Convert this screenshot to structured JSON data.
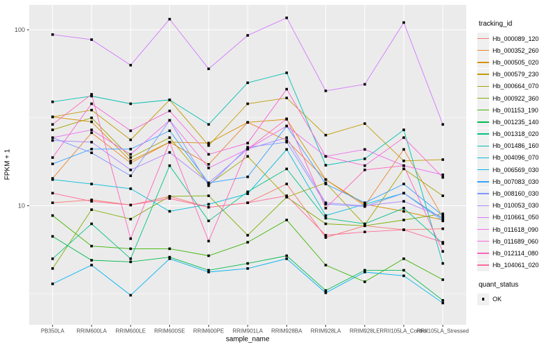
{
  "figure": {
    "background": "#ffffff",
    "panel_background": "#ebebeb",
    "grid_color": "#ffffff",
    "tick_color": "#333333",
    "tick_label_color": "#4d4d4d",
    "point_color": "#000000"
  },
  "axes": {
    "x_title": "sample_name",
    "y_title": "FPKM + 1",
    "y_tick_labels": [
      "100",
      "10"
    ]
  },
  "legend": {
    "tracking_title": "tracking_id",
    "quant_title": "quant_status",
    "quant_items": [
      {
        "label": "OK",
        "marker": "black-square"
      }
    ]
  },
  "chart_data": {
    "type": "line",
    "title": "",
    "xlabel": "sample_name",
    "ylabel": "FPKM + 1",
    "y_scale": "log10",
    "y_ticks": [
      100,
      10
    ],
    "y_minor_ticks": [
      31.623,
      3.162
    ],
    "ylim": [
      2.1,
      138
    ],
    "grid": true,
    "legend_position": "right",
    "point_marker": "black-square",
    "x_categories": [
      "PB350LA",
      "RRIM600LA",
      "RRIM600LE",
      "RRIM600SE",
      "RRIM600PE",
      "RRIM901LA",
      "RRIM928BA",
      "RRIM928LA",
      "RRIM928LE",
      "RRII105LA_Control",
      "RRII105LA_Stressed"
    ],
    "series": [
      {
        "name": "Hb_000089_120",
        "color": "#F8766D",
        "values": [
          10.4,
          10.8,
          10.1,
          11.3,
          9.8,
          10.4,
          13.3,
          6.6,
          7.7,
          7.3,
          7.4
        ]
      },
      {
        "name": "Hb_000352_260",
        "color": "#EA8331",
        "values": [
          14.3,
          26.0,
          17.5,
          23.0,
          17.2,
          29.8,
          23.5,
          14.1,
          10.0,
          20.9,
          8.6
        ]
      },
      {
        "name": "Hb_000505_020",
        "color": "#D89000",
        "values": [
          32.0,
          30.0,
          18.0,
          23.0,
          22.7,
          29.8,
          31.0,
          14.1,
          10.2,
          9.3,
          8.3
        ]
      },
      {
        "name": "Hb_000579_230",
        "color": "#C09B00",
        "values": [
          32.0,
          35.0,
          23.7,
          40.0,
          22.0,
          38.0,
          41.0,
          25.2,
          29.3,
          18.0,
          18.3
        ]
      },
      {
        "name": "Hb_000664_070",
        "color": "#A3A500",
        "values": [
          27.0,
          31.6,
          18.8,
          24.4,
          13.2,
          19.1,
          11.2,
          13.5,
          7.8,
          16.2,
          11.4
        ]
      },
      {
        "name": "Hb_000922_360",
        "color": "#7CAE00",
        "values": [
          4.4,
          9.5,
          8.4,
          11.3,
          11.4,
          6.8,
          11.2,
          7.9,
          7.7,
          8.3,
          9.0
        ]
      },
      {
        "name": "Hb_001153_190",
        "color": "#39B600",
        "values": [
          8.8,
          5.9,
          5.7,
          5.7,
          5.2,
          6.2,
          8.3,
          4.6,
          3.7,
          5.0,
          3.8
        ]
      },
      {
        "name": "Hb_001235_140",
        "color": "#00BB4E",
        "values": [
          6.7,
          4.9,
          4.8,
          5.1,
          4.3,
          4.7,
          5.2,
          3.3,
          4.3,
          4.3,
          2.9
        ]
      },
      {
        "name": "Hb_001318_020",
        "color": "#00C087",
        "values": [
          5.0,
          7.9,
          5.0,
          16.9,
          8.2,
          12.0,
          16.2,
          8.5,
          7.9,
          9.7,
          6.1
        ]
      },
      {
        "name": "Hb_001486_160",
        "color": "#00C0B2",
        "values": [
          39.0,
          42.0,
          38.0,
          40.0,
          29.0,
          50.0,
          57.0,
          17.0,
          18.5,
          27.0,
          4.7
        ]
      },
      {
        "name": "Hb_004096_070",
        "color": "#00BCD8",
        "values": [
          14.1,
          13.3,
          12.5,
          9.3,
          10.2,
          11.7,
          20.9,
          8.8,
          10.2,
          11.8,
          8.4
        ]
      },
      {
        "name": "Hb_006569_030",
        "color": "#00B3F2",
        "values": [
          3.6,
          4.6,
          3.1,
          5.0,
          4.2,
          4.4,
          5.0,
          3.2,
          4.2,
          4.0,
          2.8
        ]
      },
      {
        "name": "Hb_007083_030",
        "color": "#35A2FF",
        "values": [
          17.3,
          21.0,
          21.0,
          26.7,
          13.5,
          14.6,
          28.4,
          13.3,
          10.4,
          13.3,
          8.8
        ]
      },
      {
        "name": "Hb_008160_030",
        "color": "#7E96FF",
        "values": [
          24.4,
          20.0,
          14.8,
          30.6,
          13.0,
          21.5,
          23.0,
          10.2,
          9.9,
          11.8,
          8.2
        ]
      },
      {
        "name": "Hb_010053_030",
        "color": "#AE87FF",
        "values": [
          23.5,
          23.0,
          16.0,
          20.1,
          13.5,
          21.0,
          24.4,
          10.4,
          10.0,
          10.6,
          8.6
        ]
      },
      {
        "name": "Hb_010661_050",
        "color": "#D476FF",
        "values": [
          94.0,
          88.0,
          63.0,
          115.0,
          60.0,
          93.0,
          117.0,
          45.0,
          49.0,
          110.0,
          29.0
        ]
      },
      {
        "name": "Hb_011618_090",
        "color": "#EE6BF0",
        "values": [
          24.4,
          27.0,
          19.6,
          30.6,
          16.4,
          21.0,
          28.4,
          19.1,
          20.9,
          16.9,
          15.0
        ]
      },
      {
        "name": "Hb_011689_060",
        "color": "#FB61D7",
        "values": [
          18.8,
          38.0,
          26.7,
          34.6,
          19.6,
          22.7,
          46.0,
          19.1,
          16.9,
          24.4,
          14.5
        ]
      },
      {
        "name": "Hb_012114_080",
        "color": "#FF62BC",
        "values": [
          29.0,
          43.0,
          6.5,
          23.0,
          6.3,
          21.0,
          31.2,
          9.7,
          16.0,
          16.9,
          5.5
        ]
      },
      {
        "name": "Hb_104061_020",
        "color": "#FF6A98",
        "values": [
          11.8,
          10.6,
          10.1,
          11.0,
          9.8,
          10.4,
          11.4,
          6.8,
          7.1,
          7.3,
          6.2
        ]
      }
    ]
  }
}
